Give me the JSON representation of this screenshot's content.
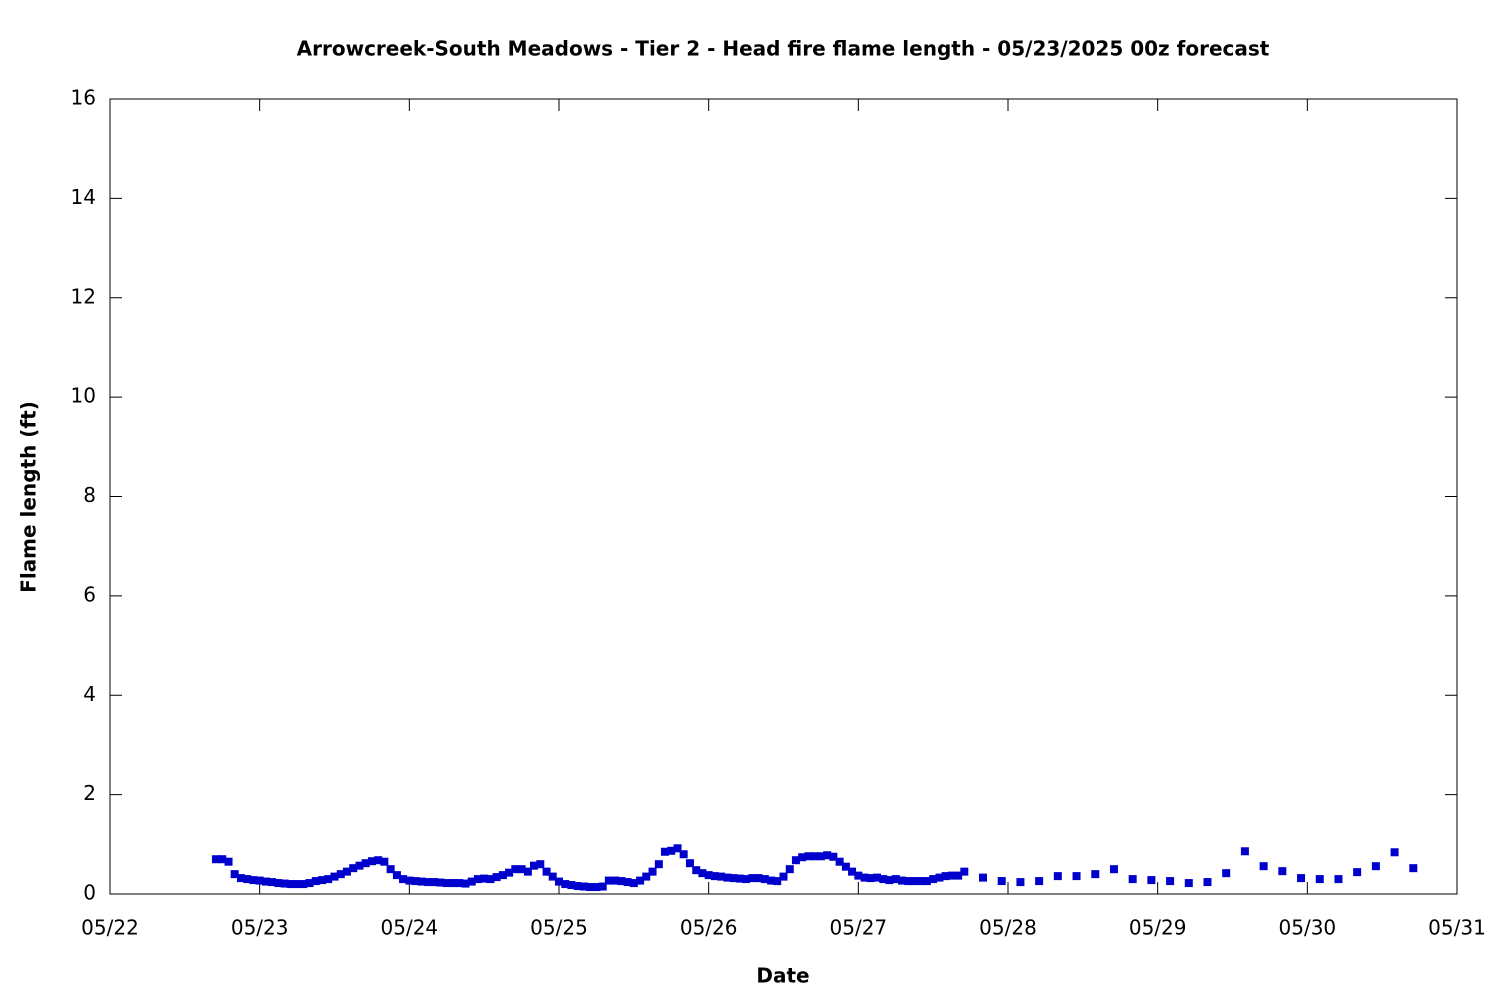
{
  "chart_data": {
    "type": "scatter",
    "title": "Arrowcreek-South Meadows - Tier 2 - Head fire flame length - 05/23/2025 00z forecast",
    "x_label": "Date",
    "y_label": "Flame length (ft)",
    "color": "#0000cc",
    "xlim": [
      22,
      31
    ],
    "xticks": [
      {
        "value": 22,
        "label": "05/22"
      },
      {
        "value": 23,
        "label": "05/23"
      },
      {
        "value": 24,
        "label": "05/24"
      },
      {
        "value": 25,
        "label": "05/25"
      },
      {
        "value": 26,
        "label": "05/26"
      },
      {
        "value": 27,
        "label": "05/27"
      },
      {
        "value": 28,
        "label": "05/28"
      },
      {
        "value": 29,
        "label": "05/29"
      },
      {
        "value": 30,
        "label": "05/30"
      },
      {
        "value": 31,
        "label": "05/31"
      }
    ],
    "ylim": [
      0,
      16
    ],
    "yticks": [
      0,
      2,
      4,
      6,
      8,
      10,
      12,
      14,
      16
    ],
    "x": [
      22.708,
      22.75,
      22.792,
      22.833,
      22.875,
      22.917,
      22.958,
      23,
      23.042,
      23.083,
      23.125,
      23.167,
      23.208,
      23.25,
      23.292,
      23.333,
      23.375,
      23.417,
      23.458,
      23.5,
      23.542,
      23.583,
      23.625,
      23.667,
      23.708,
      23.75,
      23.792,
      23.833,
      23.875,
      23.917,
      23.958,
      24,
      24.042,
      24.083,
      24.125,
      24.167,
      24.208,
      24.25,
      24.292,
      24.333,
      24.375,
      24.417,
      24.458,
      24.5,
      24.542,
      24.583,
      24.625,
      24.667,
      24.708,
      24.75,
      24.792,
      24.833,
      24.875,
      24.917,
      24.958,
      25,
      25.042,
      25.083,
      25.125,
      25.167,
      25.208,
      25.25,
      25.292,
      25.333,
      25.375,
      25.417,
      25.458,
      25.5,
      25.542,
      25.583,
      25.625,
      25.667,
      25.708,
      25.75,
      25.792,
      25.833,
      25.875,
      25.917,
      25.958,
      26,
      26.042,
      26.083,
      26.125,
      26.167,
      26.208,
      26.25,
      26.292,
      26.333,
      26.375,
      26.417,
      26.458,
      26.5,
      26.542,
      26.583,
      26.625,
      26.667,
      26.708,
      26.75,
      26.792,
      26.833,
      26.875,
      26.917,
      26.958,
      27,
      27.042,
      27.083,
      27.125,
      27.167,
      27.208,
      27.25,
      27.292,
      27.333,
      27.375,
      27.417,
      27.458,
      27.5,
      27.542,
      27.583,
      27.625,
      27.667,
      27.708,
      27.833,
      27.958,
      28.083,
      28.208,
      28.333,
      28.458,
      28.583,
      28.708,
      28.833,
      28.958,
      29.083,
      29.208,
      29.333,
      29.458,
      29.583,
      29.708,
      29.833,
      29.958,
      30.083,
      30.208,
      30.333,
      30.458,
      30.583,
      30.708
    ],
    "values": [
      0.7,
      0.7,
      0.65,
      0.4,
      0.32,
      0.3,
      0.28,
      0.27,
      0.25,
      0.24,
      0.22,
      0.21,
      0.2,
      0.2,
      0.2,
      0.22,
      0.26,
      0.28,
      0.3,
      0.35,
      0.4,
      0.45,
      0.52,
      0.57,
      0.62,
      0.66,
      0.68,
      0.65,
      0.5,
      0.38,
      0.3,
      0.27,
      0.26,
      0.25,
      0.24,
      0.24,
      0.23,
      0.22,
      0.22,
      0.22,
      0.21,
      0.25,
      0.3,
      0.31,
      0.3,
      0.34,
      0.38,
      0.43,
      0.5,
      0.5,
      0.45,
      0.57,
      0.6,
      0.45,
      0.35,
      0.25,
      0.2,
      0.18,
      0.16,
      0.15,
      0.14,
      0.14,
      0.15,
      0.27,
      0.27,
      0.26,
      0.24,
      0.22,
      0.27,
      0.35,
      0.45,
      0.6,
      0.85,
      0.87,
      0.92,
      0.8,
      0.62,
      0.48,
      0.42,
      0.38,
      0.36,
      0.35,
      0.33,
      0.32,
      0.31,
      0.3,
      0.32,
      0.32,
      0.3,
      0.27,
      0.26,
      0.35,
      0.5,
      0.68,
      0.74,
      0.76,
      0.76,
      0.76,
      0.78,
      0.75,
      0.65,
      0.55,
      0.45,
      0.37,
      0.33,
      0.32,
      0.33,
      0.3,
      0.28,
      0.3,
      0.27,
      0.26,
      0.26,
      0.26,
      0.26,
      0.3,
      0.33,
      0.36,
      0.37,
      0.37,
      0.45,
      0.33,
      0.26,
      0.24,
      0.26,
      0.36,
      0.36,
      0.4,
      0.5,
      0.3,
      0.28,
      0.26,
      0.22,
      0.24,
      0.42,
      0.86,
      0.56,
      0.46,
      0.32,
      0.3,
      0.3,
      0.44,
      0.56,
      0.84,
      0.52
    ]
  }
}
